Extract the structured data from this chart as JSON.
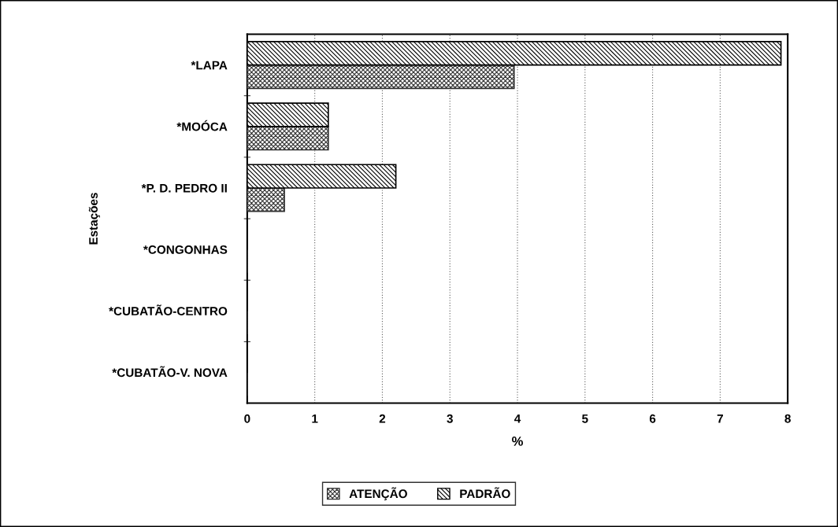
{
  "chart_data": {
    "type": "bar",
    "orientation": "horizontal",
    "ylabel": "Estações",
    "xlabel": "%",
    "categories": [
      "*LAPA",
      "*MOÓCA",
      "*P. D. PEDRO II",
      "*CONGONHAS",
      "*CUBATÃO-CENTRO",
      "*CUBATÃO-V. NOVA"
    ],
    "series": [
      {
        "name": "ATENÇÃO",
        "color": "#303030",
        "values": [
          3.95,
          1.2,
          0.55,
          0,
          0,
          0
        ]
      },
      {
        "name": "PADRÃO",
        "color": "#000000",
        "values": [
          7.9,
          1.2,
          2.2,
          0,
          0,
          0
        ]
      }
    ],
    "xlim": [
      0,
      8
    ],
    "xticks": [
      0,
      1,
      2,
      3,
      4,
      5,
      6,
      7,
      8
    ],
    "grid": "x",
    "legend": "bottom"
  }
}
